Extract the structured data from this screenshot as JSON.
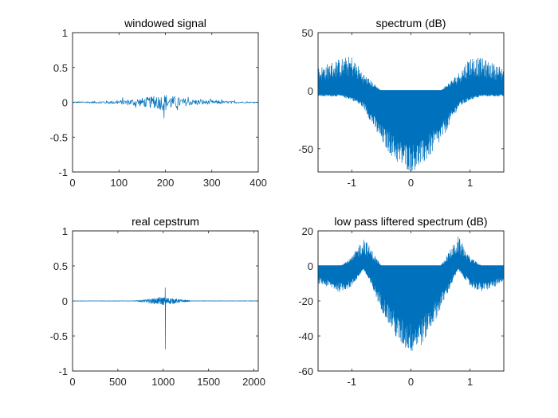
{
  "chart_data": [
    {
      "id": "windowed",
      "type": "line",
      "title": "windowed signal",
      "xlim": [
        0,
        400
      ],
      "ylim": [
        -1,
        1
      ],
      "xticks": [
        0,
        100,
        200,
        300,
        400
      ],
      "xtick_labels": [
        "0",
        "100",
        "200",
        "300",
        "400"
      ],
      "yticks": [
        -1,
        -0.5,
        0,
        0.5,
        1
      ],
      "ytick_labels": [
        "-1",
        "-0.5",
        "0",
        "0.5",
        "1"
      ],
      "color": "#0072BD",
      "series": [
        {
          "envelope": {
            "x": [
              0,
              50,
              100,
              150,
              175,
              200,
              225,
              250,
              300,
              350,
              400
            ],
            "y": [
              0.02,
              0.03,
              0.06,
              0.15,
              0.2,
              0.28,
              0.17,
              0.11,
              0.06,
              0.03,
              0.01
            ]
          }
        }
      ]
    },
    {
      "id": "spectrum",
      "type": "line",
      "title": "spectrum (dB)",
      "xlim": [
        -1.5708,
        1.5708
      ],
      "ylim": [
        -70,
        50
      ],
      "xticks": [
        -1,
        0,
        1
      ],
      "xtick_labels": [
        "-1",
        "0",
        "1"
      ],
      "yticks": [
        -50,
        0,
        50
      ],
      "ytick_labels": [
        "-50",
        "0",
        "50"
      ],
      "color": "#0072BD",
      "series": [
        {
          "envelope": {
            "x": [
              -1.5708,
              -1.2,
              -1.0,
              -0.8,
              -0.5,
              -0.2,
              0,
              0.2,
              0.5,
              0.8,
              1.0,
              1.2,
              1.5708
            ],
            "upper": [
              20,
              28,
              30,
              15,
              0,
              0,
              0,
              0,
              0,
              15,
              30,
              28,
              20
            ],
            "lower": [
              -5,
              -5,
              -8,
              -15,
              -45,
              -65,
              -70,
              -65,
              -45,
              -15,
              -8,
              -5,
              -5
            ]
          }
        }
      ]
    },
    {
      "id": "cepstrum",
      "type": "line",
      "title": "real cepstrum",
      "xlim": [
        0,
        2048
      ],
      "ylim": [
        -1,
        1
      ],
      "xticks": [
        0,
        500,
        1000,
        1500,
        2000
      ],
      "xtick_labels": [
        "0",
        "500",
        "1000",
        "1500",
        "2000"
      ],
      "yticks": [
        -1,
        -0.5,
        0,
        0.5,
        1
      ],
      "ytick_labels": [
        "-1",
        "-0.5",
        "0",
        "0.5",
        "1"
      ],
      "color": "#0072BD",
      "series": [
        {
          "spike": {
            "x": 1024,
            "y_max": 0.19,
            "y_min": -0.69
          },
          "envelope": {
            "x": [
              700,
              800,
              900,
              1000,
              1100,
              1200,
              1300
            ],
            "y": [
              0.005,
              0.02,
              0.04,
              0.06,
              0.04,
              0.02,
              0.005
            ]
          }
        }
      ]
    },
    {
      "id": "liftered",
      "type": "line",
      "title": "low pass liftered spectrum (dB)",
      "xlim": [
        -1.5708,
        1.5708
      ],
      "ylim": [
        -60,
        20
      ],
      "xticks": [
        -1,
        0,
        1
      ],
      "xtick_labels": [
        "-1",
        "0",
        "1"
      ],
      "yticks": [
        -60,
        -40,
        -20,
        0,
        20
      ],
      "ytick_labels": [
        "-60",
        "-40",
        "-20",
        "0",
        "20"
      ],
      "color": "#0072BD",
      "series": [
        {
          "envelope": {
            "x": [
              -1.5708,
              -1.2,
              -1.0,
              -0.8,
              -0.5,
              -0.2,
              0,
              0.2,
              0.5,
              0.8,
              1.0,
              1.2,
              1.5708
            ],
            "upper": [
              0,
              0,
              5,
              17,
              0,
              0,
              0,
              0,
              0,
              17,
              5,
              0,
              0
            ],
            "lower": [
              -10,
              -15,
              -12,
              -2,
              -25,
              -45,
              -50,
              -45,
              -25,
              -2,
              -12,
              -15,
              -10
            ]
          }
        }
      ]
    }
  ]
}
